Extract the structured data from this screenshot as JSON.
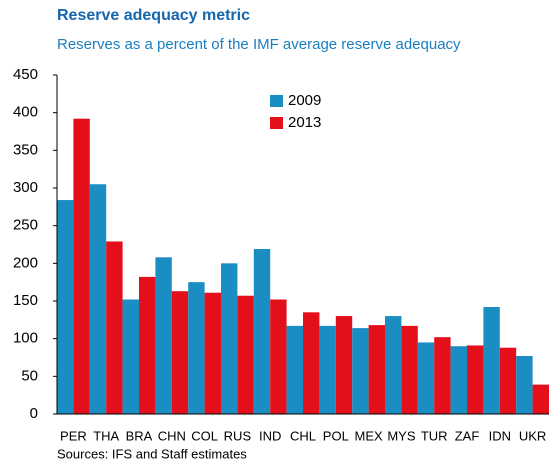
{
  "chart_data": {
    "type": "bar",
    "title": "Reserve adequacy metric",
    "subtitle": "Reserves as a percent of the IMF average reserve adequacy",
    "source": "Sources: IFS and Staff estimates",
    "categories": [
      "PER",
      "THA",
      "BRA",
      "CHN",
      "COL",
      "RUS",
      "IND",
      "CHL",
      "POL",
      "MEX",
      "MYS",
      "TUR",
      "ZAF",
      "IDN",
      "UKR"
    ],
    "series": [
      {
        "name": "2009",
        "color": "#1a8dc2",
        "values": [
          284,
          305,
          152,
          208,
          175,
          200,
          219,
          117,
          117,
          114,
          130,
          95,
          90,
          142,
          77
        ]
      },
      {
        "name": "2013",
        "color": "#e3101c",
        "values": [
          392,
          229,
          182,
          163,
          161,
          157,
          152,
          135,
          130,
          118,
          117,
          102,
          91,
          88,
          39
        ]
      }
    ],
    "ylim": [
      0,
      450
    ],
    "yticks": [
      0,
      50,
      100,
      150,
      200,
      250,
      300,
      350,
      400,
      450
    ],
    "grid": false,
    "legend": "top-center"
  }
}
